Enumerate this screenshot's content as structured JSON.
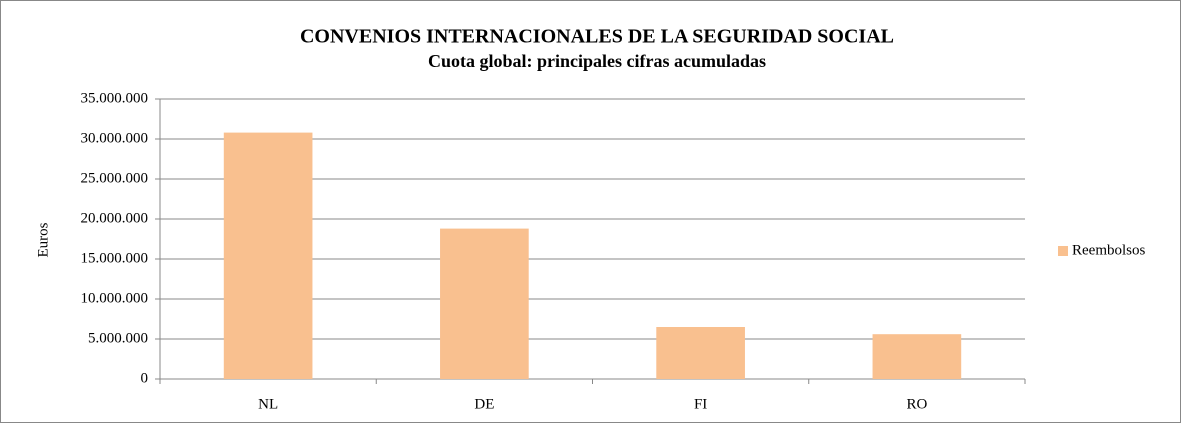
{
  "chart_data": {
    "type": "bar",
    "title": "CONVENIOS INTERNACIONALES DE LA SEGURIDAD SOCIAL",
    "subtitle": "Cuota global: principales cifras acumuladas",
    "y_label": "Euros",
    "categories": [
      "NL",
      "DE",
      "FI",
      "RO"
    ],
    "series": [
      {
        "name": "Reembolsos",
        "color": "#f9c08f",
        "values": [
          30800000,
          18800000,
          6500000,
          5600000
        ]
      }
    ],
    "ylim": [
      0,
      35000000
    ],
    "yticks": [
      0,
      {
        "value": 5000000,
        "label": "5.000.000"
      },
      {
        "value": 10000000,
        "label": "10.000.000"
      },
      {
        "value": 15000000,
        "label": "15.000.000"
      },
      {
        "value": 20000000,
        "label": "20.000.000"
      },
      {
        "value": 25000000,
        "label": "25.000.000"
      },
      {
        "value": 30000000,
        "label": "30.000.000"
      },
      {
        "value": 35000000,
        "label": "35.000.000"
      }
    ],
    "grid": true,
    "legend": "right"
  }
}
